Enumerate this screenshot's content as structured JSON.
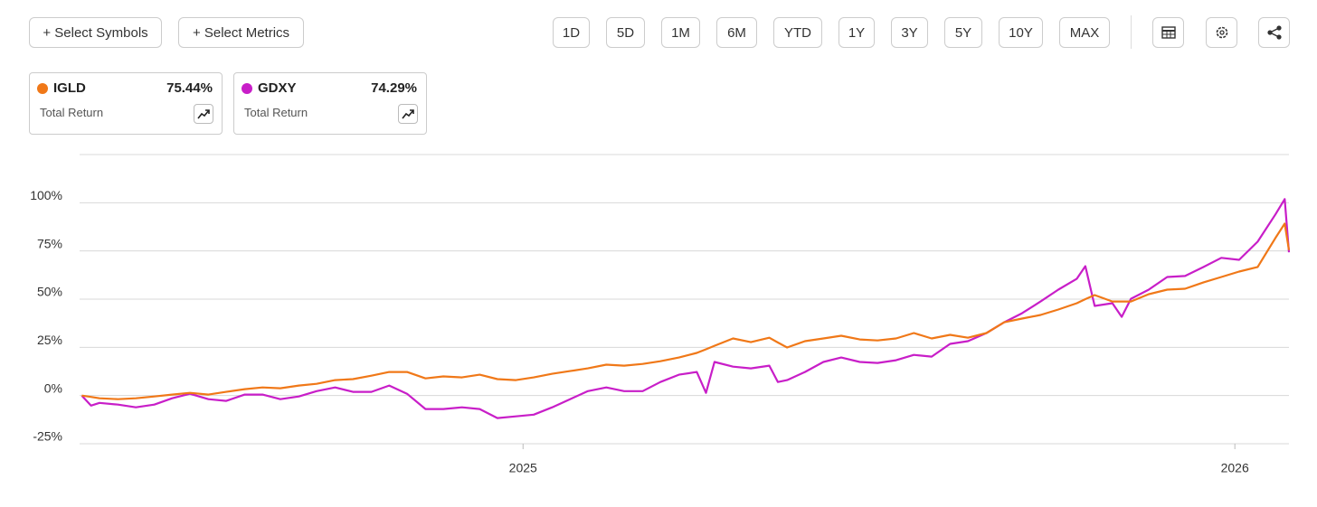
{
  "toolbar": {
    "symbols": "+ Select Symbols",
    "metrics": "+ Select Metrics",
    "ranges": [
      "1D",
      "5D",
      "1M",
      "6M",
      "YTD",
      "1Y",
      "3Y",
      "5Y",
      "10Y",
      "MAX"
    ]
  },
  "cards": [
    {
      "value": "75.44%",
      "metric": "Total Return"
    },
    {
      "value": "74.29%",
      "metric": "Total Return"
    }
  ],
  "chart_data": {
    "type": "line",
    "x": [
      2024.38,
      2024.393,
      2024.405,
      2024.431,
      2024.456,
      2024.482,
      2024.507,
      2024.532,
      2024.558,
      2024.583,
      2024.609,
      2024.634,
      2024.659,
      2024.685,
      2024.71,
      2024.736,
      2024.761,
      2024.787,
      2024.812,
      2024.837,
      2024.863,
      2024.888,
      2024.914,
      2024.939,
      2024.964,
      2024.99,
      2025.015,
      2025.041,
      2025.066,
      2025.091,
      2025.117,
      2025.142,
      2025.168,
      2025.193,
      2025.219,
      2025.244,
      2025.257,
      2025.269,
      2025.295,
      2025.32,
      2025.346,
      2025.358,
      2025.371,
      2025.396,
      2025.422,
      2025.447,
      2025.473,
      2025.498,
      2025.524,
      2025.549,
      2025.574,
      2025.6,
      2025.625,
      2025.651,
      2025.676,
      2025.701,
      2025.727,
      2025.752,
      2025.778,
      2025.79,
      2025.803,
      2025.828,
      2025.841,
      2025.854,
      2025.879,
      2025.905,
      2025.93,
      2025.956,
      2025.981,
      2026.006,
      2026.032,
      2026.057,
      2026.07,
      2026.076
    ],
    "series": [
      {
        "name": "IGLD",
        "color": "#f07818",
        "values": [
          0,
          -0.7,
          -1.4,
          -1.9,
          -1.4,
          -0.5,
          0.5,
          1.4,
          0.5,
          1.9,
          3.3,
          4.2,
          3.8,
          5.2,
          6.1,
          8.0,
          8.5,
          10.3,
          12.2,
          12.2,
          8.9,
          9.9,
          9.4,
          10.8,
          8.5,
          8.0,
          9.4,
          11.3,
          12.7,
          14.1,
          16.0,
          15.5,
          16.4,
          17.8,
          19.7,
          22.1,
          24.0,
          25.8,
          29.6,
          27.7,
          30.0,
          27.5,
          24.9,
          28.2,
          29.6,
          31.0,
          29.1,
          28.6,
          29.6,
          32.4,
          29.6,
          31.5,
          30.0,
          32.4,
          38.0,
          39.9,
          41.8,
          44.6,
          47.9,
          50.0,
          52.1,
          48.8,
          48.8,
          48.8,
          52.6,
          54.9,
          55.4,
          58.7,
          61.5,
          64.3,
          66.7,
          81.7,
          89.2,
          75.44
        ]
      },
      {
        "name": "GDXY",
        "color": "#c81ec8",
        "values": [
          0,
          -5.2,
          -3.8,
          -4.7,
          -6.1,
          -4.7,
          -1.4,
          0.9,
          -1.9,
          -2.8,
          0.5,
          0.5,
          -1.9,
          -0.5,
          2.3,
          4.2,
          1.9,
          1.9,
          5.2,
          0.9,
          -7.0,
          -7.0,
          -6.1,
          -7.0,
          -11.7,
          -10.8,
          -9.9,
          -6.1,
          -1.9,
          2.3,
          4.2,
          2.3,
          2.3,
          7.0,
          10.8,
          12.2,
          1.4,
          17.4,
          15.0,
          14.1,
          15.5,
          7.0,
          8.0,
          12.2,
          17.4,
          19.7,
          17.4,
          16.9,
          18.3,
          21.1,
          20.2,
          26.8,
          28.2,
          32.4,
          38.0,
          42.7,
          48.8,
          54.9,
          60.6,
          67.1,
          46.5,
          47.9,
          40.8,
          50.2,
          54.9,
          61.5,
          62.0,
          66.7,
          71.4,
          70.4,
          79.8,
          93.9,
          101.9,
          74.29
        ]
      }
    ],
    "xlim": [
      2024.377,
      2026.076
    ],
    "xticks": [
      2025,
      2026
    ],
    "ylim": [
      -25,
      125
    ],
    "yticks": [
      {
        "value": -25,
        "label": "-25%"
      },
      {
        "value": 0,
        "label": "0%"
      },
      {
        "value": 25,
        "label": "25%"
      },
      {
        "value": 50,
        "label": "50%"
      },
      {
        "value": 75,
        "label": "75%"
      },
      {
        "value": 100,
        "label": "100%"
      },
      {
        "value": 125,
        "label": ""
      }
    ],
    "grid": true
  }
}
